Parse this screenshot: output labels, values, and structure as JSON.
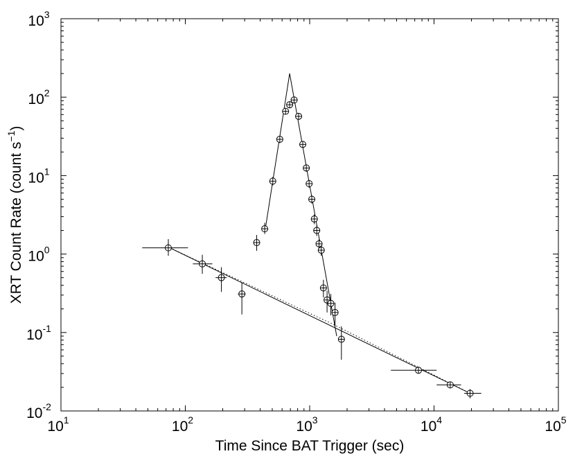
{
  "chart_data": {
    "type": "scatter",
    "title": "",
    "xlabel": "Time Since BAT Trigger (sec)",
    "ylabel_main": "XRT Count Rate (count s",
    "ylabel_exp": "−1",
    "ylabel_close": ")",
    "x_scale": "log",
    "y_scale": "log",
    "xlim": [
      10,
      100000
    ],
    "ylim": [
      0.01,
      1000
    ],
    "x_ticks": [
      {
        "value": 10,
        "base": "10",
        "exp": "1"
      },
      {
        "value": 100,
        "base": "10",
        "exp": "2"
      },
      {
        "value": 1000,
        "base": "10",
        "exp": "3"
      },
      {
        "value": 10000,
        "base": "10",
        "exp": "4"
      },
      {
        "value": 100000,
        "base": "10",
        "exp": "5"
      }
    ],
    "y_ticks": [
      {
        "value": 0.01,
        "base": "10",
        "exp": "-2"
      },
      {
        "value": 0.1,
        "base": "10",
        "exp": "-1"
      },
      {
        "value": 1,
        "base": "10",
        "exp": "0"
      },
      {
        "value": 10,
        "base": "10",
        "exp": "1"
      },
      {
        "value": 100,
        "base": "10",
        "exp": "2"
      },
      {
        "value": 1000,
        "base": "10",
        "exp": "3"
      }
    ],
    "grid": false,
    "legend": "none",
    "series": [
      {
        "points": [
          {
            "x": 73,
            "y": 1.2,
            "xlo": 45,
            "xhi": 105,
            "ylo": 0.95,
            "yhi": 1.55
          },
          {
            "x": 137,
            "y": 0.75,
            "xlo": 115,
            "xhi": 165,
            "ylo": 0.56,
            "yhi": 0.98
          },
          {
            "x": 195,
            "y": 0.5,
            "xlo": 175,
            "xhi": 215,
            "ylo": 0.33,
            "yhi": 0.68
          },
          {
            "x": 285,
            "y": 0.31,
            "xlo": 265,
            "xhi": 305,
            "ylo": 0.17,
            "yhi": 0.44
          },
          {
            "x": 375,
            "y": 1.4,
            "xlo": 360,
            "xhi": 390,
            "ylo": 1.1,
            "yhi": 1.75
          },
          {
            "x": 435,
            "y": 2.1,
            "xlo": 420,
            "xhi": 450,
            "ylo": 1.8,
            "yhi": 2.5
          },
          {
            "x": 505,
            "y": 8.5,
            "xlo": 495,
            "xhi": 515,
            "ylo": 7.5,
            "yhi": 9.6
          },
          {
            "x": 575,
            "y": 29,
            "xlo": 560,
            "xhi": 590,
            "ylo": 26,
            "yhi": 32
          },
          {
            "x": 640,
            "y": 66,
            "xlo": 625,
            "xhi": 655,
            "ylo": 60,
            "yhi": 72
          },
          {
            "x": 690,
            "y": 80,
            "xlo": 675,
            "xhi": 705,
            "ylo": 73,
            "yhi": 88
          },
          {
            "x": 750,
            "y": 92,
            "xlo": 735,
            "xhi": 765,
            "ylo": 84,
            "yhi": 100
          },
          {
            "x": 815,
            "y": 57,
            "xlo": 800,
            "xhi": 830,
            "ylo": 52,
            "yhi": 62
          },
          {
            "x": 880,
            "y": 25,
            "xlo": 865,
            "xhi": 895,
            "ylo": 22.5,
            "yhi": 27.5
          },
          {
            "x": 940,
            "y": 12.5,
            "xlo": 925,
            "xhi": 955,
            "ylo": 11.2,
            "yhi": 13.8
          },
          {
            "x": 990,
            "y": 7.9,
            "xlo": 975,
            "xhi": 1005,
            "ylo": 7.0,
            "yhi": 8.8
          },
          {
            "x": 1040,
            "y": 5.0,
            "xlo": 1025,
            "xhi": 1055,
            "ylo": 4.4,
            "yhi": 5.6
          },
          {
            "x": 1090,
            "y": 2.8,
            "xlo": 1075,
            "xhi": 1105,
            "ylo": 2.4,
            "yhi": 3.2
          },
          {
            "x": 1140,
            "y": 2.0,
            "xlo": 1125,
            "xhi": 1155,
            "ylo": 1.7,
            "yhi": 2.3
          },
          {
            "x": 1190,
            "y": 1.35,
            "xlo": 1175,
            "xhi": 1205,
            "ylo": 1.15,
            "yhi": 1.55
          },
          {
            "x": 1240,
            "y": 1.12,
            "xlo": 1225,
            "xhi": 1255,
            "ylo": 0.95,
            "yhi": 1.3
          },
          {
            "x": 1290,
            "y": 0.37,
            "xlo": 1270,
            "xhi": 1310,
            "ylo": 0.28,
            "yhi": 0.47
          },
          {
            "x": 1380,
            "y": 0.26,
            "xlo": 1355,
            "xhi": 1405,
            "ylo": 0.18,
            "yhi": 0.34
          },
          {
            "x": 1480,
            "y": 0.235,
            "xlo": 1455,
            "xhi": 1505,
            "ylo": 0.165,
            "yhi": 0.31
          },
          {
            "x": 1600,
            "y": 0.18,
            "xlo": 1570,
            "xhi": 1630,
            "ylo": 0.12,
            "yhi": 0.24
          },
          {
            "x": 1800,
            "y": 0.082,
            "xlo": 1700,
            "xhi": 1900,
            "ylo": 0.045,
            "yhi": 0.12
          },
          {
            "x": 7500,
            "y": 0.033,
            "xlo": 4500,
            "xhi": 10500,
            "ylo": 0.031,
            "yhi": 0.035
          },
          {
            "x": 13500,
            "y": 0.0215,
            "xlo": 10500,
            "xhi": 16500,
            "ylo": 0.0195,
            "yhi": 0.0235
          },
          {
            "x": 19500,
            "y": 0.0168,
            "xlo": 17500,
            "xhi": 24000,
            "ylo": 0.0145,
            "yhi": 0.019
          }
        ]
      }
    ],
    "model_lines": [
      {
        "style": "solid",
        "points": [
          [
            75,
            1.2
          ],
          [
            20000,
            0.0165
          ]
        ]
      },
      {
        "style": "dotted",
        "points": [
          [
            75,
            1.2
          ],
          [
            1500,
            0.13
          ],
          [
            20000,
            0.0165
          ]
        ]
      },
      {
        "style": "solid",
        "points": [
          [
            440,
            2.1
          ],
          [
            690,
            200
          ]
        ]
      },
      {
        "style": "solid",
        "points": [
          [
            690,
            200
          ],
          [
            1650,
            0.09
          ]
        ]
      }
    ]
  }
}
